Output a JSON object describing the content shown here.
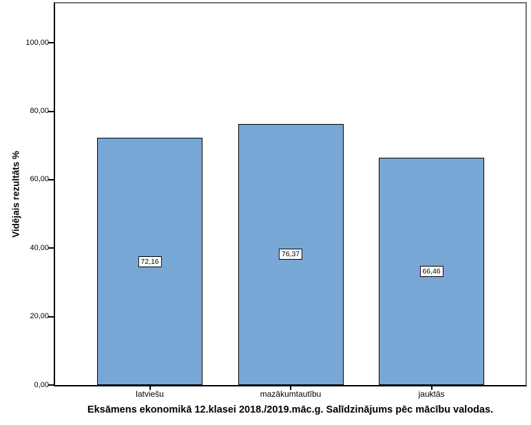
{
  "page": {
    "background": "#FFFFFF"
  },
  "chart_data": {
    "type": "bar",
    "title": "Eksāmens ekonomikā 12.klasei 2018./2019.māc.g. Salīdzinājums pēc mācību valodas.",
    "xlabel": "",
    "ylabel": "Vidējais rezultāts %",
    "categories": [
      "latviešu",
      "mazākumtautību",
      "jauktās"
    ],
    "values": [
      72.16,
      76.37,
      66.46
    ],
    "value_labels": [
      "72,16",
      "76,37",
      "66,46"
    ],
    "yticks": [
      0,
      20,
      40,
      60,
      80,
      100
    ],
    "ytick_labels": [
      "0,00",
      "20,00",
      "40,00",
      "60,00",
      "80,00",
      "100,00"
    ],
    "ylim": [
      0,
      111.5
    ],
    "grid": false,
    "legend": "none",
    "bar_fill": "#79A7D5",
    "bar_border": "#000000",
    "value_box_bg": "#FFFFFF",
    "value_box_border": "#000000",
    "axis_color": "#000000",
    "frame_color": "#737373"
  }
}
